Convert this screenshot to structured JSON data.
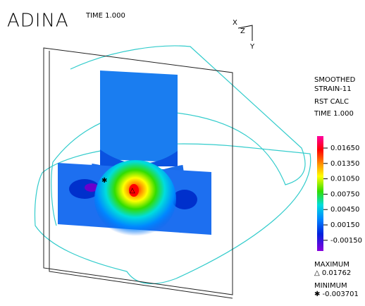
{
  "header": {
    "logo": "ADINA",
    "time": "TIME 1.000"
  },
  "triad": {
    "x": "X",
    "z": "Z",
    "y": "Y"
  },
  "legend": {
    "lines": [
      "SMOOTHED",
      "STRAIN-11",
      "RST CALC",
      "TIME 1.000"
    ],
    "ticks": [
      "0.01650",
      "0.01350",
      "0.01050",
      "0.00750",
      "0.00450",
      "0.00150",
      "-0.00150"
    ],
    "maximum_label": "MAXIMUM",
    "maximum_value": "△ 0.01762",
    "minimum_label": "MINIMUM",
    "minimum_value": "✱ -0.003701"
  }
}
